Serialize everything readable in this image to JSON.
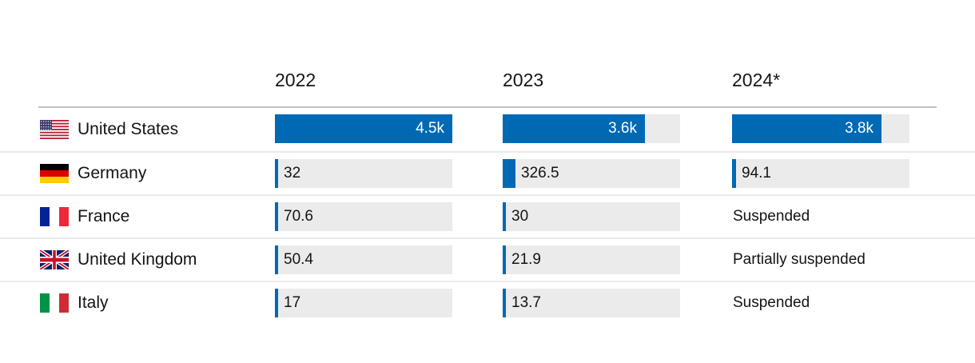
{
  "header": {
    "columns": [
      "2022",
      "2023",
      "2024*"
    ]
  },
  "colors": {
    "bar_blue": "#0069b4",
    "track_gray": "#ebebeb",
    "top_rule": "#c0c0c0",
    "row_rule": "#e9e9e9",
    "text": "#141414",
    "value_on_bar": "#ffffff"
  },
  "chart_data": {
    "type": "bar",
    "title": "",
    "columns": [
      "2022",
      "2023",
      "2024*"
    ],
    "value_axis_max": 4500,
    "grid": false,
    "legend": "none",
    "rows": [
      {
        "country": "United States",
        "flag": "us",
        "cells": [
          {
            "label": "4.5k",
            "value": 4500
          },
          {
            "label": "3.6k",
            "value": 3600
          },
          {
            "label": "3.8k",
            "value": 3800
          }
        ]
      },
      {
        "country": "Germany",
        "flag": "de",
        "cells": [
          {
            "label": "32",
            "value": 32
          },
          {
            "label": "326.5",
            "value": 326.5
          },
          {
            "label": "94.1",
            "value": 94.1
          }
        ]
      },
      {
        "country": "France",
        "flag": "fr",
        "cells": [
          {
            "label": "70.6",
            "value": 70.6
          },
          {
            "label": "30",
            "value": 30
          },
          {
            "status": "Suspended"
          }
        ]
      },
      {
        "country": "United Kingdom",
        "flag": "gb",
        "cells": [
          {
            "label": "50.4",
            "value": 50.4
          },
          {
            "label": "21.9",
            "value": 21.9
          },
          {
            "status": "Partially suspended"
          }
        ]
      },
      {
        "country": "Italy",
        "flag": "it",
        "cells": [
          {
            "label": "17",
            "value": 17
          },
          {
            "label": "13.7",
            "value": 13.7
          },
          {
            "status": "Suspended"
          }
        ]
      }
    ]
  }
}
